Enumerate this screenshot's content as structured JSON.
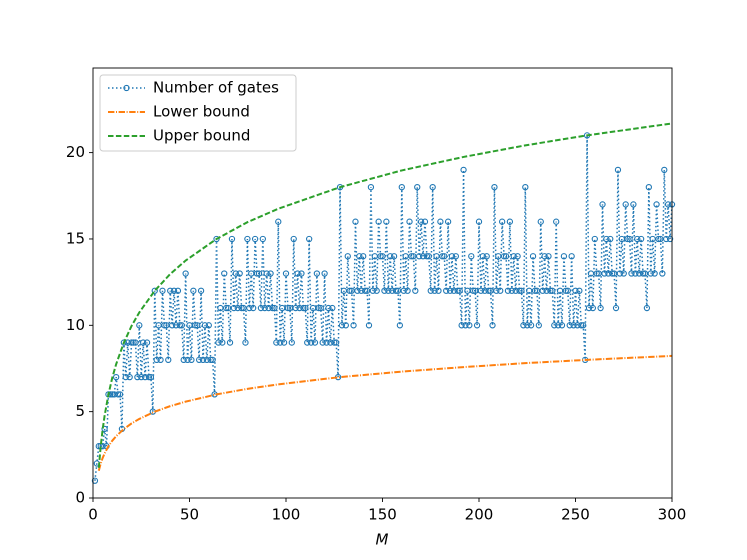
{
  "chart_data": {
    "type": "line",
    "xlabel": "M",
    "xlim": [
      0,
      300
    ],
    "xticks": [
      0,
      50,
      100,
      150,
      200,
      250,
      300
    ],
    "ylim": [
      0,
      24.9
    ],
    "yticks": [
      0,
      5,
      10,
      15,
      20
    ],
    "legend": "upper left",
    "series": [
      {
        "name": "Number of gates",
        "color": "#1f77b4",
        "style": "dotted",
        "marker": "circle",
        "x": [
          1,
          2,
          3,
          4,
          5,
          6,
          7,
          8,
          9,
          10,
          11,
          12,
          13,
          14,
          15,
          16,
          17,
          18,
          19,
          20,
          21,
          22,
          23,
          24,
          25,
          26,
          27,
          28,
          29,
          30,
          31,
          32,
          33,
          34,
          35,
          36,
          37,
          38,
          39,
          40,
          41,
          42,
          43,
          44,
          45,
          46,
          47,
          48,
          49,
          50,
          51,
          52,
          53,
          54,
          55,
          56,
          57,
          58,
          59,
          60,
          61,
          62,
          63,
          64,
          65,
          66,
          67,
          68,
          69,
          70,
          71,
          72,
          73,
          74,
          75,
          76,
          77,
          78,
          79,
          80,
          81,
          82,
          83,
          84,
          85,
          86,
          87,
          88,
          89,
          90,
          91,
          92,
          93,
          94,
          95,
          96,
          97,
          98,
          99,
          100,
          101,
          102,
          103,
          104,
          105,
          106,
          107,
          108,
          109,
          110,
          111,
          112,
          113,
          114,
          115,
          116,
          117,
          118,
          119,
          120,
          121,
          122,
          123,
          124,
          125,
          126,
          127,
          128,
          129,
          130,
          131,
          132,
          133,
          134,
          135,
          136,
          137,
          138,
          139,
          140,
          141,
          142,
          143,
          144,
          145,
          146,
          147,
          148,
          149,
          150,
          151,
          152,
          153,
          154,
          155,
          156,
          157,
          158,
          159,
          160,
          161,
          162,
          163,
          164,
          165,
          166,
          167,
          168,
          169,
          170,
          171,
          172,
          173,
          174,
          175,
          176,
          177,
          178,
          179,
          180,
          181,
          182,
          183,
          184,
          185,
          186,
          187,
          188,
          189,
          190,
          191,
          192,
          193,
          194,
          195,
          196,
          197,
          198,
          199,
          200,
          201,
          202,
          203,
          204,
          205,
          206,
          207,
          208,
          209,
          210,
          211,
          212,
          213,
          214,
          215,
          216,
          217,
          218,
          219,
          220,
          221,
          222,
          223,
          224,
          225,
          226,
          227,
          228,
          229,
          230,
          231,
          232,
          233,
          234,
          235,
          236,
          237,
          238,
          239,
          240,
          241,
          242,
          243,
          244,
          245,
          246,
          247,
          248,
          249,
          250,
          251,
          252,
          253,
          254,
          255,
          256,
          257,
          258,
          259,
          260,
          261,
          262,
          263,
          264,
          265,
          266,
          267,
          268,
          269,
          270,
          271,
          272,
          273,
          274,
          275,
          276,
          277,
          278,
          279,
          280,
          281,
          282,
          283,
          284,
          285,
          286,
          287,
          288,
          289,
          290,
          291,
          292,
          293,
          294,
          295,
          296,
          297,
          298,
          299,
          300
        ],
        "values": [
          1,
          2,
          3,
          3,
          3,
          4,
          3,
          6,
          6,
          6,
          6,
          7,
          6,
          6,
          4,
          9,
          7,
          9,
          7,
          9,
          9,
          9,
          7,
          10,
          7,
          9,
          7,
          9,
          7,
          7,
          5,
          12,
          8,
          10,
          8,
          12,
          10,
          10,
          8,
          12,
          10,
          12,
          10,
          12,
          10,
          10,
          8,
          13,
          8,
          10,
          8,
          12,
          10,
          10,
          8,
          12,
          8,
          10,
          8,
          10,
          8,
          8,
          6,
          15,
          9,
          11,
          9,
          13,
          11,
          11,
          9,
          15,
          11,
          13,
          11,
          13,
          11,
          11,
          9,
          15,
          11,
          13,
          11,
          15,
          13,
          13,
          11,
          15,
          11,
          13,
          11,
          13,
          11,
          11,
          9,
          16,
          9,
          11,
          9,
          13,
          11,
          11,
          9,
          15,
          11,
          13,
          11,
          13,
          11,
          11,
          9,
          15,
          9,
          11,
          9,
          13,
          11,
          11,
          9,
          13,
          9,
          11,
          9,
          11,
          9,
          9,
          7,
          18,
          10,
          12,
          10,
          14,
          12,
          12,
          10,
          16,
          12,
          14,
          12,
          14,
          12,
          12,
          10,
          18,
          12,
          14,
          12,
          16,
          14,
          14,
          12,
          16,
          12,
          14,
          12,
          14,
          12,
          12,
          10,
          18,
          12,
          14,
          12,
          16,
          14,
          14,
          12,
          18,
          14,
          16,
          14,
          16,
          14,
          14,
          12,
          18,
          12,
          14,
          12,
          16,
          14,
          14,
          12,
          16,
          12,
          14,
          12,
          14,
          12,
          12,
          10,
          19,
          10,
          12,
          10,
          14,
          12,
          12,
          10,
          16,
          12,
          14,
          12,
          14,
          12,
          12,
          10,
          18,
          12,
          14,
          12,
          16,
          14,
          14,
          12,
          16,
          12,
          14,
          12,
          14,
          12,
          12,
          10,
          18,
          10,
          12,
          10,
          14,
          12,
          12,
          10,
          16,
          12,
          14,
          12,
          14,
          12,
          12,
          10,
          16,
          10,
          12,
          10,
          14,
          12,
          12,
          10,
          14,
          10,
          12,
          10,
          12,
          10,
          10,
          8,
          21,
          11,
          13,
          11,
          15,
          13,
          13,
          11,
          17,
          13,
          15,
          13,
          15,
          13,
          13,
          11,
          19,
          13,
          15,
          13,
          17,
          15,
          15,
          13,
          17,
          13,
          15,
          13,
          15,
          13,
          13,
          11,
          18,
          13,
          15,
          13,
          17,
          15,
          15,
          13,
          19,
          15,
          17,
          15,
          17
        ]
      },
      {
        "name": "Lower bound",
        "color": "#ff7f0e",
        "style": "dashdot",
        "x": [
          3,
          4,
          5,
          6,
          8,
          10,
          12,
          16,
          20,
          24,
          32,
          40,
          48,
          64,
          80,
          96,
          128,
          160,
          192,
          224,
          256,
          300
        ],
        "values": [
          1.58,
          2,
          2.32,
          2.58,
          3,
          3.32,
          3.58,
          4,
          4.32,
          4.58,
          5,
          5.32,
          5.58,
          6,
          6.32,
          6.58,
          7,
          7.32,
          7.58,
          7.81,
          8,
          8.23
        ]
      },
      {
        "name": "Upper bound",
        "color": "#2ca02c",
        "style": "dashed",
        "x": [
          3,
          4,
          5,
          6,
          8,
          10,
          12,
          16,
          20,
          24,
          32,
          40,
          48,
          64,
          80,
          96,
          128,
          160,
          192,
          224,
          256,
          300
        ],
        "values": [
          1.75,
          3,
          3.97,
          4.75,
          6,
          6.97,
          7.75,
          9,
          9.97,
          10.75,
          12,
          12.97,
          13.75,
          15,
          15.97,
          16.75,
          18,
          18.97,
          19.75,
          20.42,
          21,
          21.69
        ]
      }
    ]
  }
}
